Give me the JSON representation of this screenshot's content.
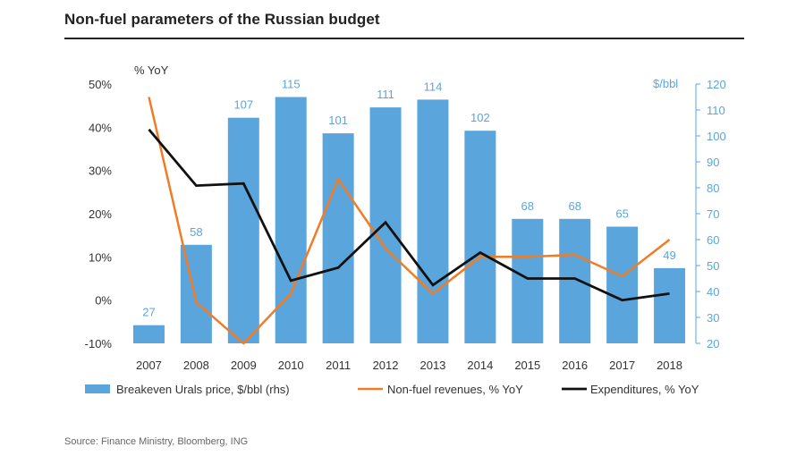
{
  "header": {
    "title": "Non-fuel parameters of the Russian budget"
  },
  "footer": {
    "source": "Source: Finance Ministry, Bloomberg, ING"
  },
  "chart_data": {
    "type": "bar+line",
    "categories": [
      "2007",
      "2008",
      "2009",
      "2010",
      "2011",
      "2012",
      "2013",
      "2014",
      "2015",
      "2016",
      "2017",
      "2018"
    ],
    "left_axis": {
      "unit_label": "% YoY",
      "range": [
        -10,
        50
      ],
      "ticks": [
        "-10%",
        "0%",
        "10%",
        "20%",
        "30%",
        "40%",
        "50%"
      ],
      "tick_values": [
        -10,
        0,
        10,
        20,
        30,
        40,
        50
      ]
    },
    "right_axis": {
      "unit_label": "$/bbl",
      "range": [
        20,
        120
      ],
      "ticks": [
        "20",
        "30",
        "40",
        "50",
        "60",
        "70",
        "80",
        "90",
        "100",
        "110",
        "120"
      ],
      "tick_values": [
        20,
        30,
        40,
        50,
        60,
        70,
        80,
        90,
        100,
        110,
        120
      ]
    },
    "bars": {
      "name": "Breakeven Urals price, $/bbl (rhs)",
      "axis": "right",
      "color": "#5aa6dc",
      "values": [
        27,
        58,
        107,
        115,
        101,
        111,
        114,
        102,
        68,
        68,
        65,
        49
      ]
    },
    "series": [
      {
        "name": "Non-fuel revenues, % YoY",
        "axis": "left",
        "color": "#f07c26",
        "values": [
          47,
          -0.5,
          -10,
          1.5,
          28,
          12,
          1.5,
          10,
          10,
          10.5,
          5.5,
          14
        ]
      },
      {
        "name": "Expenditures, % YoY",
        "axis": "left",
        "color": "#111111",
        "values": [
          39.5,
          26.5,
          27,
          4.5,
          7.5,
          18,
          3.5,
          11,
          5,
          5,
          0,
          1.5
        ]
      }
    ],
    "legend_position": "bottom",
    "grid": false
  }
}
